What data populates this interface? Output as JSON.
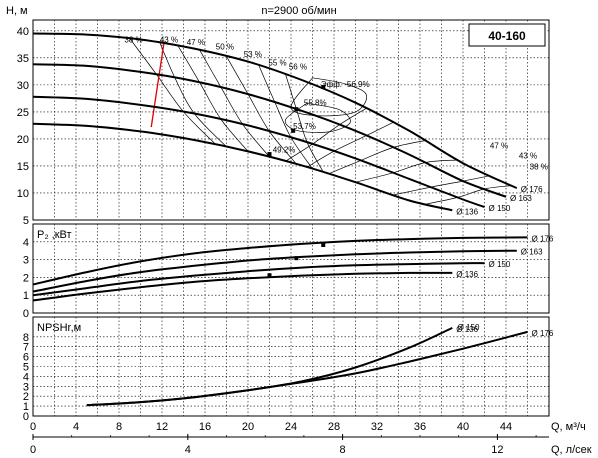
{
  "chart_data": [
    {
      "type": "line",
      "title": "n=2900 об/мин",
      "model": "40-160",
      "ylabel": "H, м",
      "xlim": [
        0,
        48
      ],
      "ylim": [
        5,
        42
      ],
      "yticks": [
        5,
        10,
        15,
        20,
        25,
        30,
        35,
        40
      ],
      "series": [
        {
          "name": "Ø 176",
          "x": [
            0,
            5,
            10,
            15,
            20,
            25,
            30,
            35,
            40,
            45
          ],
          "y": [
            39.5,
            39.3,
            38.4,
            36.7,
            34.3,
            30.9,
            26.7,
            21.5,
            15.5,
            10.9
          ]
        },
        {
          "name": "Ø 163",
          "x": [
            0,
            5,
            10,
            15,
            20,
            25,
            30,
            35,
            40,
            44
          ],
          "y": [
            33.8,
            33.5,
            32.4,
            30.7,
            28.3,
            25.2,
            21.5,
            17.1,
            12.2,
            9.3
          ]
        },
        {
          "name": "Ø 150",
          "x": [
            0,
            5,
            10,
            15,
            20,
            25,
            30,
            35,
            40,
            42
          ],
          "y": [
            27.8,
            27.4,
            26.3,
            24.7,
            22.5,
            19.7,
            16.4,
            12.6,
            8.8,
            7.4
          ]
        },
        {
          "name": "Ø 136",
          "x": [
            0,
            5,
            10,
            15,
            20,
            25,
            30,
            35,
            39
          ],
          "y": [
            22.8,
            22.4,
            21.4,
            19.8,
            17.7,
            15.1,
            12.0,
            8.6,
            6.8
          ]
        }
      ],
      "efficiency_labels": [
        "38 %",
        "43 %",
        "47 %",
        "50 %",
        "53 %",
        "55 %",
        "56 %",
        "56.9%",
        "55.8%",
        "53.7%",
        "49.2%",
        "47 %",
        "43 %",
        "38 %"
      ],
      "efficiency_symbol": "Эфф.",
      "markers": [
        {
          "x": 27,
          "y": 29.6
        },
        {
          "x": 24.5,
          "y": 25.5
        },
        {
          "x": 24.2,
          "y": 21.5
        },
        {
          "x": 22,
          "y": 17.2
        }
      ]
    },
    {
      "type": "line",
      "ylabel": "P₂ ,кВт",
      "ylim": [
        0,
        5
      ],
      "yticks": [
        0,
        1,
        2,
        3,
        4
      ],
      "series": [
        {
          "name": "Ø 176",
          "x": [
            0,
            5,
            10,
            15,
            20,
            25,
            30,
            35,
            40,
            46
          ],
          "y": [
            1.6,
            2.3,
            2.9,
            3.35,
            3.65,
            3.88,
            4.05,
            4.15,
            4.22,
            4.25
          ]
        },
        {
          "name": "Ø 163",
          "x": [
            0,
            5,
            10,
            15,
            20,
            25,
            30,
            35,
            40,
            45
          ],
          "y": [
            1.2,
            1.8,
            2.3,
            2.65,
            2.95,
            3.15,
            3.3,
            3.4,
            3.47,
            3.5
          ]
        },
        {
          "name": "Ø 150",
          "x": [
            0,
            5,
            10,
            15,
            20,
            25,
            30,
            35,
            40,
            42
          ],
          "y": [
            1.0,
            1.4,
            1.8,
            2.1,
            2.35,
            2.55,
            2.68,
            2.75,
            2.8,
            2.8
          ]
        },
        {
          "name": "Ø 136",
          "x": [
            0,
            5,
            10,
            15,
            20,
            25,
            30,
            35,
            39
          ],
          "y": [
            0.7,
            1.1,
            1.45,
            1.75,
            1.95,
            2.1,
            2.2,
            2.25,
            2.25
          ]
        }
      ],
      "markers": [
        {
          "x": 27,
          "y": 3.82
        },
        {
          "x": 24.5,
          "y": 3.08
        },
        {
          "x": 22,
          "y": 2.12
        }
      ]
    },
    {
      "type": "line",
      "ylabel": "NPSHr,м",
      "xlabel": "Q, м³/ч",
      "x2label": "Q, л/сек",
      "xlim": [
        0,
        48
      ],
      "ylim": [
        0,
        10
      ],
      "yticks": [
        0,
        1,
        2,
        3,
        4,
        5,
        6,
        7,
        8
      ],
      "xticks": [
        0,
        4,
        8,
        12,
        16,
        20,
        24,
        28,
        32,
        36,
        40,
        44
      ],
      "x2ticks": [
        0,
        4,
        8,
        12
      ],
      "series": [
        {
          "name": "Ø 136",
          "x": [
            5,
            10,
            15,
            20,
            25,
            30,
            35,
            39
          ],
          "y": [
            1.1,
            1.4,
            1.9,
            2.6,
            3.5,
            4.9,
            6.9,
            8.9
          ]
        },
        {
          "name": "Ø 176",
          "x": [
            5,
            10,
            15,
            20,
            25,
            30,
            35,
            40,
            46
          ],
          "y": [
            1.1,
            1.4,
            1.9,
            2.6,
            3.4,
            4.3,
            5.5,
            6.8,
            8.5
          ]
        }
      ],
      "extra_labels": [
        {
          "text": "Ø 150"
        }
      ]
    }
  ]
}
